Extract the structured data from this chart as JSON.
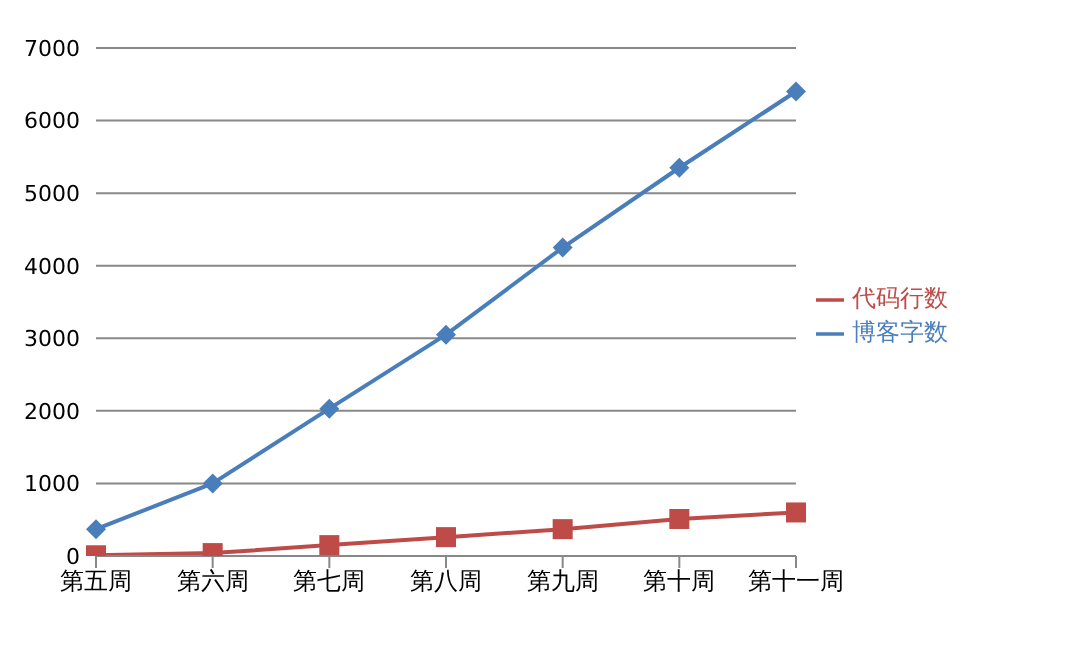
{
  "chart_data": {
    "type": "line",
    "categories": [
      "第五周",
      "第六周",
      "第七周",
      "第八周",
      "第九周",
      "第十周",
      "第十一周"
    ],
    "series": [
      {
        "name": "博客字数",
        "color": "#4a7ebb",
        "marker": "diamond",
        "values": [
          370,
          1000,
          2030,
          3050,
          4250,
          5350,
          6400
        ]
      },
      {
        "name": "代码行数",
        "color": "#be4b48",
        "marker": "square",
        "values": [
          10,
          40,
          150,
          260,
          370,
          510,
          600
        ]
      }
    ],
    "ylim": [
      0,
      7000
    ],
    "yticks": [
      0,
      1000,
      2000,
      3000,
      4000,
      5000,
      6000,
      7000
    ],
    "grid": "y",
    "legend": "right"
  }
}
